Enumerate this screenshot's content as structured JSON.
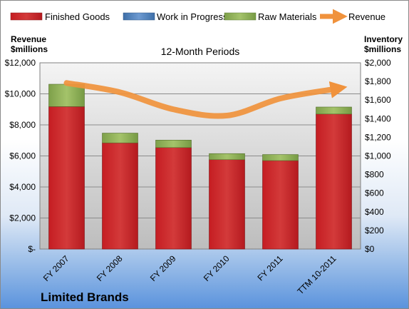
{
  "chart_data": {
    "type": "bar",
    "title": "12-Month Periods",
    "company": "Limited Brands",
    "categories": [
      "FY 2007",
      "FY 2008",
      "FY 2009",
      "FY 2010",
      "FY 2011",
      "TTM 10-2011"
    ],
    "left_axis_title": [
      "Revenue",
      "$millions"
    ],
    "right_axis_title": [
      "Inventory",
      "$millions"
    ],
    "left_ylim": [
      0,
      12000
    ],
    "right_ylim": [
      0,
      2000
    ],
    "left_ticks": [
      "$-",
      "$2,000",
      "$4,000",
      "$6,000",
      "$8,000",
      "$10,000",
      "$12,000"
    ],
    "right_ticks": [
      "$0",
      "$200",
      "$400",
      "$600",
      "$800",
      "$1,000",
      "$1,200",
      "$1,400",
      "$1,600",
      "$1,800",
      "$2,000"
    ],
    "legend_position": "top",
    "grid": true,
    "series": [
      {
        "name": "Finished Goods",
        "axis": "right",
        "kind": "bar",
        "color": "#c0262a",
        "values": [
          1530,
          1140,
          1090,
          960,
          950,
          1450
        ]
      },
      {
        "name": "Work in Progress",
        "axis": "right",
        "kind": "bar",
        "color": "#4f81bd",
        "values": [
          0,
          0,
          0,
          0,
          0,
          0
        ]
      },
      {
        "name": "Raw Materials",
        "axis": "right",
        "kind": "bar",
        "color": "#9bbb59",
        "values": [
          240,
          105,
          80,
          65,
          65,
          75
        ]
      },
      {
        "name": "Revenue",
        "axis": "left",
        "kind": "line",
        "color": "#f0923c",
        "values": [
          10700,
          10100,
          9000,
          8600,
          9700,
          10300
        ]
      }
    ]
  }
}
